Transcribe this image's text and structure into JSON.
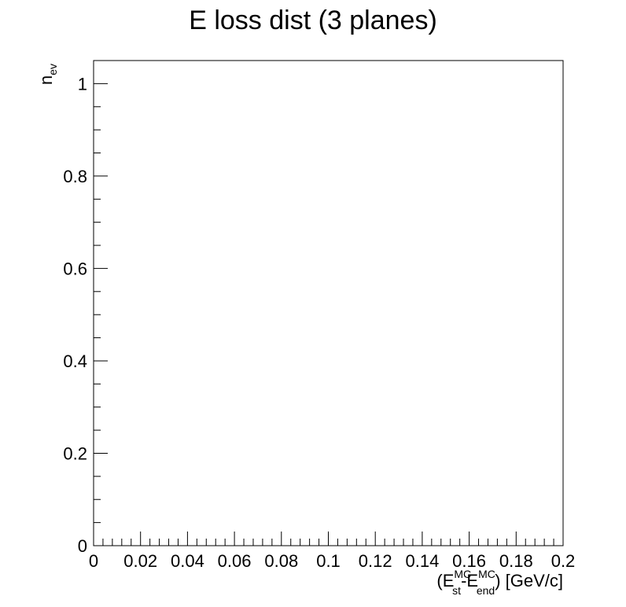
{
  "chart_data": {
    "type": "bar",
    "title": "E loss dist (3 planes)",
    "ylabel": {
      "base": "n",
      "sub": "ev"
    },
    "xlabel": {
      "open": "(E",
      "sup1": "MC",
      "sub1": "st",
      "dash": "-E",
      "sup2": "MC",
      "sub2": "end",
      "close": ") [GeV/c]"
    },
    "xlim": [
      0,
      0.2
    ],
    "ylim": [
      0,
      1.05
    ],
    "x_ticks": [
      0,
      0.02,
      0.04,
      0.06,
      0.08,
      0.1,
      0.12,
      0.14,
      0.16,
      0.18,
      0.2
    ],
    "x_tick_labels": [
      "0",
      "0.02",
      "0.04",
      "0.06",
      "0.08",
      "0.1",
      "0.12",
      "0.14",
      "0.16",
      "0.18",
      "0.2"
    ],
    "x_minor_step": 0.004,
    "y_ticks": [
      0,
      0.2,
      0.4,
      0.6,
      0.8,
      1
    ],
    "y_tick_labels": [
      "0",
      "0.2",
      "0.4",
      "0.6",
      "0.8",
      "1"
    ],
    "y_minor_step": 0.05,
    "series": [],
    "grid": false,
    "legend": "none",
    "colors": {
      "frame": "#000000",
      "background": "#ffffff"
    }
  }
}
